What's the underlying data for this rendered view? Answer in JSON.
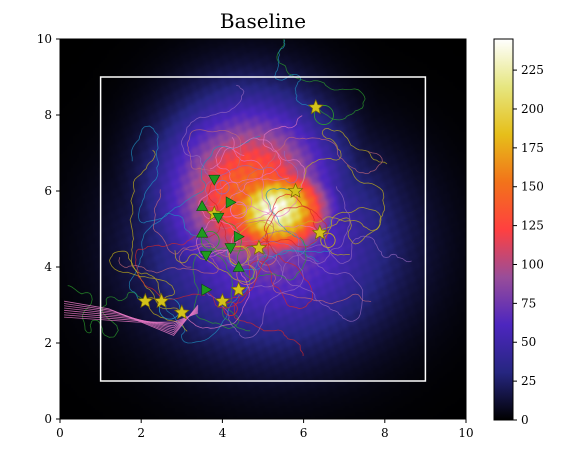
{
  "chart_data": {
    "type": "heatmap",
    "title": "Baseline",
    "xlabel": "",
    "ylabel": "",
    "xlim": [
      0,
      10
    ],
    "ylim": [
      0,
      10
    ],
    "xticks": [
      0,
      2,
      4,
      6,
      8,
      10
    ],
    "yticks": [
      0,
      2,
      4,
      6,
      8,
      10
    ],
    "colormap": "CMRmap",
    "colorbar": {
      "min": 0,
      "max": 245,
      "ticks": [
        0,
        25,
        50,
        75,
        100,
        125,
        150,
        175,
        200,
        225
      ]
    },
    "heatmap_peaks": [
      {
        "x": 5.3,
        "y": 5.5,
        "value": 240,
        "sx": 0.9,
        "sy": 0.8
      },
      {
        "x": 4.7,
        "y": 5.9,
        "value": 150,
        "sx": 1.4,
        "sy": 1.6
      },
      {
        "x": 5.2,
        "y": 4.6,
        "value": 80,
        "sx": 2.0,
        "sy": 1.8
      }
    ],
    "boundary_rectangle": {
      "x": [
        1,
        9
      ],
      "y": [
        1,
        9
      ],
      "color": "#ffffff"
    },
    "star_markers": [
      {
        "x": 6.3,
        "y": 8.2
      },
      {
        "x": 5.8,
        "y": 6.0
      },
      {
        "x": 6.4,
        "y": 4.9
      },
      {
        "x": 3.8,
        "y": 5.4
      },
      {
        "x": 4.9,
        "y": 4.5
      },
      {
        "x": 4.4,
        "y": 3.4
      },
      {
        "x": 4.0,
        "y": 3.1
      },
      {
        "x": 2.1,
        "y": 3.1
      },
      {
        "x": 2.5,
        "y": 3.1
      },
      {
        "x": 3.0,
        "y": 2.8
      }
    ],
    "triangle_markers": [
      {
        "x": 4.2,
        "y": 5.7,
        "dir": "right"
      },
      {
        "x": 3.5,
        "y": 5.6,
        "dir": "up"
      },
      {
        "x": 3.8,
        "y": 6.3,
        "dir": "down"
      },
      {
        "x": 3.9,
        "y": 5.3,
        "dir": "down"
      },
      {
        "x": 3.5,
        "y": 4.9,
        "dir": "up"
      },
      {
        "x": 4.4,
        "y": 4.8,
        "dir": "right"
      },
      {
        "x": 4.2,
        "y": 4.5,
        "dir": "down"
      },
      {
        "x": 3.6,
        "y": 4.3,
        "dir": "down"
      },
      {
        "x": 4.4,
        "y": 4.0,
        "dir": "up"
      },
      {
        "x": 3.6,
        "y": 3.4,
        "dir": "right"
      }
    ],
    "marker_colors": {
      "star": "#d4c21a",
      "triangle": "#1f9a1f"
    },
    "trajectory_colors": [
      "#2ca02c",
      "#1f8fbf",
      "#c8b418",
      "#e377c2",
      "#c1687a",
      "#9467bd",
      "#d62728"
    ]
  }
}
